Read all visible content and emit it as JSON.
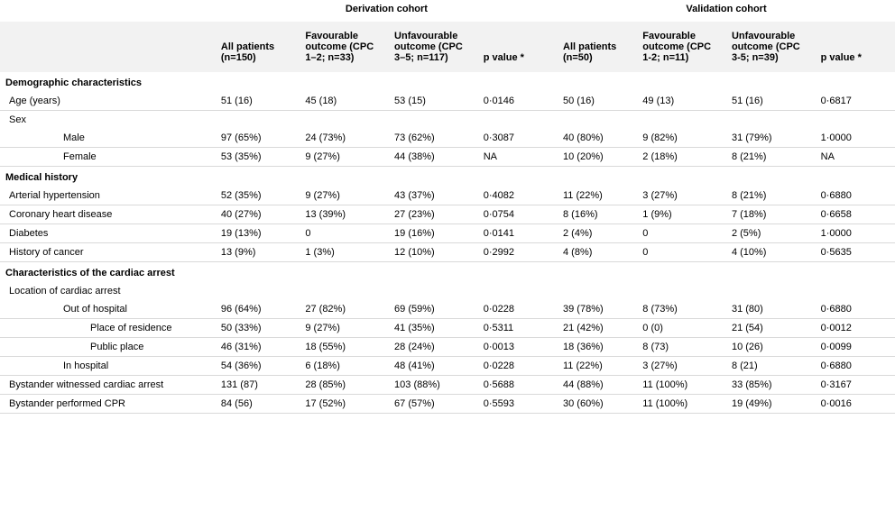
{
  "cohorts": {
    "derivation": {
      "title": "Derivation cohort",
      "cols": {
        "all": "All patients (n=150)",
        "fav": "Favourable outcome (CPC 1–2; n=33)",
        "unfav": "Unfavourable outcome (CPC 3–5; n=117)",
        "p": "p value *"
      }
    },
    "validation": {
      "title": "Validation cohort",
      "cols": {
        "all": "All patients (n=50)",
        "fav": "Favourable outcome (CPC 1-2; n=11)",
        "unfav": "Unfavourable outcome (CPC 3-5; n=39)",
        "p": "p value *"
      }
    }
  },
  "sections": [
    {
      "title": "Demographic characteristics",
      "rows": [
        {
          "label": "Age (years)",
          "indent": 0,
          "d": [
            "51 (16)",
            "45 (18)",
            "53 (15)",
            "0·0146"
          ],
          "v": [
            "50 (16)",
            "49 (13)",
            "51 (16)",
            "0·6817"
          ],
          "underline": true
        },
        {
          "label": "Sex",
          "indent": 0,
          "d": [
            "",
            "",
            "",
            ""
          ],
          "v": [
            "",
            "",
            "",
            ""
          ],
          "underline": false
        },
        {
          "label": "Male",
          "indent": 1,
          "d": [
            "97 (65%)",
            "24 (73%)",
            "73 (62%)",
            "0·3087"
          ],
          "v": [
            "40 (80%)",
            "9 (82%)",
            "31 (79%)",
            "1·0000"
          ],
          "underline": true
        },
        {
          "label": "Female",
          "indent": 1,
          "d": [
            "53 (35%)",
            "9 (27%)",
            "44 (38%)",
            "NA"
          ],
          "v": [
            "10 (20%)",
            "2 (18%)",
            "8 (21%)",
            "NA"
          ],
          "underline": true
        }
      ]
    },
    {
      "title": "Medical history",
      "rows": [
        {
          "label": "Arterial hypertension",
          "indent": 0,
          "d": [
            "52 (35%)",
            "9 (27%)",
            "43 (37%)",
            "0·4082"
          ],
          "v": [
            "11 (22%)",
            "3 (27%)",
            "8 (21%)",
            "0·6880"
          ],
          "underline": true
        },
        {
          "label": "Coronary heart disease",
          "indent": 0,
          "d": [
            "40 (27%)",
            "13 (39%)",
            "27 (23%)",
            "0·0754"
          ],
          "v": [
            "8 (16%)",
            "1 (9%)",
            "7 (18%)",
            "0·6658"
          ],
          "underline": true
        },
        {
          "label": "Diabetes",
          "indent": 0,
          "d": [
            "19 (13%)",
            "0",
            "19 (16%)",
            "0·0141"
          ],
          "v": [
            "2 (4%)",
            "0",
            "2 (5%)",
            "1·0000"
          ],
          "underline": true
        },
        {
          "label": "History of cancer",
          "indent": 0,
          "d": [
            "13 (9%)",
            "1 (3%)",
            "12 (10%)",
            "0·2992"
          ],
          "v": [
            "4 (8%)",
            "0",
            "4 (10%)",
            "0·5635"
          ],
          "underline": true
        }
      ]
    },
    {
      "title": "Characteristics of the cardiac arrest",
      "rows": [
        {
          "label": "Location of cardiac arrest",
          "indent": 0,
          "d": [
            "",
            "",
            "",
            ""
          ],
          "v": [
            "",
            "",
            "",
            ""
          ],
          "underline": false
        },
        {
          "label": "Out of hospital",
          "indent": 1,
          "d": [
            "96 (64%)",
            "27 (82%)",
            "69 (59%)",
            "0·0228"
          ],
          "v": [
            "39 (78%)",
            "8 (73%)",
            "31 (80)",
            "0·6880"
          ],
          "underline": true
        },
        {
          "label": "Place of residence",
          "indent": 2,
          "d": [
            "50 (33%)",
            "9 (27%)",
            "41 (35%)",
            "0·5311"
          ],
          "v": [
            "21 (42%)",
            "0 (0)",
            "21 (54)",
            "0·0012"
          ],
          "underline": true
        },
        {
          "label": "Public place",
          "indent": 2,
          "d": [
            "46 (31%)",
            "18 (55%)",
            "28 (24%)",
            "0·0013"
          ],
          "v": [
            "18 (36%)",
            "8 (73)",
            "10 (26)",
            "0·0099"
          ],
          "underline": true
        },
        {
          "label": "In hospital",
          "indent": 1,
          "d": [
            "54 (36%)",
            "6 (18%)",
            "48 (41%)",
            "0·0228"
          ],
          "v": [
            "11 (22%)",
            "3 (27%)",
            "8 (21)",
            "0·6880"
          ],
          "underline": true
        },
        {
          "label": "Bystander witnessed cardiac arrest",
          "indent": 0,
          "d": [
            "131 (87)",
            "28 (85%)",
            "103 (88%)",
            "0·5688"
          ],
          "v": [
            "44 (88%)",
            "11 (100%)",
            "33 (85%)",
            "0·3167"
          ],
          "underline": true
        },
        {
          "label": "Bystander performed CPR",
          "indent": 0,
          "d": [
            "84 (56)",
            "17 (52%)",
            "67 (57%)",
            "0·5593"
          ],
          "v": [
            "30 (60%)",
            "11 (100%)",
            "19 (49%)",
            "0·0016"
          ],
          "underline": true
        }
      ]
    }
  ]
}
